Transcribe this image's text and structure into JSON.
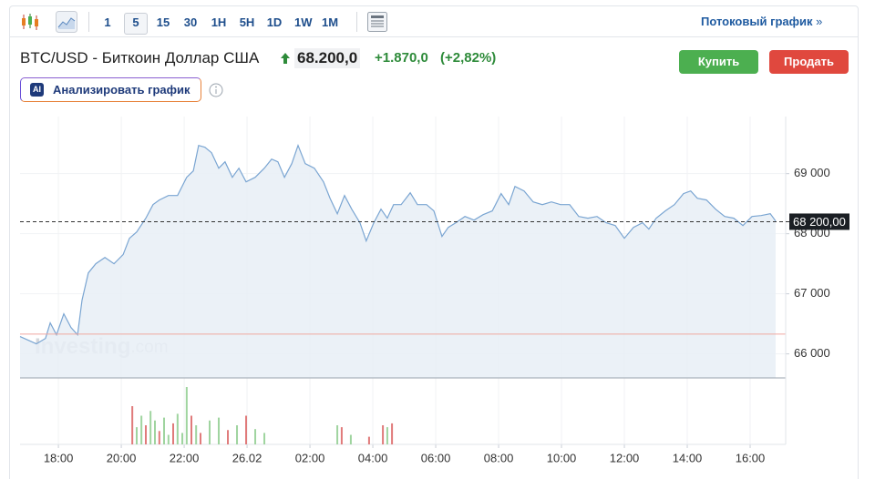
{
  "toolbar": {
    "intervals": [
      "1",
      "5",
      "15",
      "30",
      "1H",
      "5H",
      "1D",
      "1W",
      "1M"
    ],
    "streaming_link": "Потоковый график"
  },
  "header": {
    "instrument": "BTC/USD - Биткоин Доллар США",
    "price": "68.200,0",
    "change": "+1.870,0",
    "change_percent": "(+2,82%)"
  },
  "buttons": {
    "buy": "Купить",
    "sell": "Продать"
  },
  "ai": {
    "badge": "AI",
    "label": "Анализировать график"
  },
  "chart_data": {
    "type": "area",
    "x": [
      16.78,
      17.3,
      17.59,
      17.74,
      17.94,
      18.17,
      18.4,
      18.61,
      18.75,
      18.95,
      19.19,
      19.48,
      19.77,
      20.06,
      20.26,
      20.49,
      20.78,
      21.01,
      21.21,
      21.5,
      21.79,
      22.08,
      22.29,
      22.46,
      22.66,
      22.87,
      23.1,
      23.3,
      23.53,
      23.74,
      23.97,
      24.26,
      24.55,
      24.78,
      24.98,
      25.19,
      25.42,
      25.62,
      25.85,
      26.14,
      26.43,
      26.64,
      26.87,
      27.1,
      27.33,
      27.59,
      27.79,
      28.03,
      28.26,
      28.46,
      28.66,
      28.9,
      29.19,
      29.42,
      29.71,
      29.94,
      30.2,
      30.4,
      30.64,
      30.93,
      31.22,
      31.51,
      31.8,
      32.08,
      32.32,
      32.52,
      32.81,
      33.1,
      33.39,
      33.68,
      33.97,
      34.26,
      34.55,
      34.84,
      35.13,
      35.42,
      35.71,
      36.0,
      36.29,
      36.58,
      36.78,
      37.01,
      37.3,
      37.59,
      37.88,
      38.11,
      38.32,
      38.61,
      38.9,
      39.19,
      39.48,
      39.77,
      40.06,
      40.35,
      40.64,
      40.81
    ],
    "series": [
      {
        "color": "#7aa5d2",
        "values": [
          66288,
          66167,
          66258,
          66515,
          66318,
          66667,
          66439,
          66318,
          66894,
          67348,
          67500,
          67606,
          67500,
          67652,
          67924,
          68030,
          68258,
          68485,
          68561,
          68636,
          68636,
          68939,
          69045,
          69470,
          69439,
          69348,
          69091,
          69197,
          68939,
          69091,
          68864,
          68939,
          69091,
          69242,
          69197,
          68939,
          69167,
          69470,
          69167,
          69091,
          68864,
          68591,
          68333,
          68636,
          68409,
          68182,
          67879,
          68182,
          68409,
          68258,
          68485,
          68485,
          68682,
          68485,
          68485,
          68379,
          67955,
          68106,
          68182,
          68288,
          68227,
          68318,
          68379,
          68667,
          68485,
          68788,
          68712,
          68530,
          68485,
          68530,
          68485,
          68485,
          68288,
          68258,
          68288,
          68182,
          68136,
          67924,
          68106,
          68182,
          68076,
          68258,
          68379,
          68485,
          68667,
          68712,
          68591,
          68561,
          68409,
          68288,
          68258,
          68136,
          68288,
          68303,
          68333,
          68212
        ]
      }
    ],
    "xlim": [
      16.78,
      41.13
    ],
    "ylim": [
      65600,
      69950
    ],
    "xticks": [
      {
        "value": 18,
        "label": "18:00"
      },
      {
        "value": 20,
        "label": "20:00"
      },
      {
        "value": 22,
        "label": "22:00"
      },
      {
        "value": 24,
        "label": "26.02"
      },
      {
        "value": 26,
        "label": "02:00"
      },
      {
        "value": 28,
        "label": "04:00"
      },
      {
        "value": 30,
        "label": "06:00"
      },
      {
        "value": 32,
        "label": "08:00"
      },
      {
        "value": 34,
        "label": "10:00"
      },
      {
        "value": 36,
        "label": "12:00"
      },
      {
        "value": 38,
        "label": "14:00"
      },
      {
        "value": 40,
        "label": "16:00"
      }
    ],
    "yticks": [
      {
        "value": 66000,
        "label": "66 000"
      },
      {
        "value": 67000,
        "label": "67 000"
      },
      {
        "value": 68000,
        "label": "68 000"
      },
      {
        "value": 69000,
        "label": "69 000"
      }
    ],
    "grid": true,
    "current_price": {
      "value": 68200,
      "label": "68 200,00"
    },
    "previous_close": 66330,
    "watermark": [
      "Investing",
      ".com"
    ],
    "volume": {
      "vlim": [
        0,
        60
      ],
      "x": [
        20.35,
        20.49,
        20.64,
        20.78,
        20.93,
        21.07,
        21.21,
        21.36,
        21.5,
        21.65,
        21.79,
        21.94,
        22.08,
        22.23,
        22.38,
        22.52,
        22.81,
        23.1,
        23.39,
        23.68,
        23.97,
        24.26,
        24.55,
        26.87,
        27.01,
        27.3,
        27.88,
        28.32,
        28.46,
        28.61
      ],
      "values": [
        40,
        18,
        30,
        20,
        35,
        25,
        14,
        28,
        10,
        22,
        32,
        12,
        60,
        30,
        20,
        12,
        25,
        28,
        15,
        20,
        30,
        16,
        12,
        20,
        18,
        10,
        8,
        20,
        18,
        22
      ],
      "colors": [
        "#e07a7a",
        "#9fd49f",
        "#9fd49f",
        "#e07a7a",
        "#9fd49f",
        "#9fd49f",
        "#e07a7a",
        "#9fd49f",
        "#9fd49f",
        "#e07a7a",
        "#9fd49f",
        "#9fd49f",
        "#9fd49f",
        "#e07a7a",
        "#9fd49f",
        "#e07a7a",
        "#9fd49f",
        "#9fd49f",
        "#e07a7a",
        "#9fd49f",
        "#e07a7a",
        "#9fd49f",
        "#9fd49f",
        "#9fd49f",
        "#e07a7a",
        "#9fd49f",
        "#e07a7a",
        "#e07a7a",
        "#9fd49f",
        "#e07a7a"
      ]
    }
  }
}
